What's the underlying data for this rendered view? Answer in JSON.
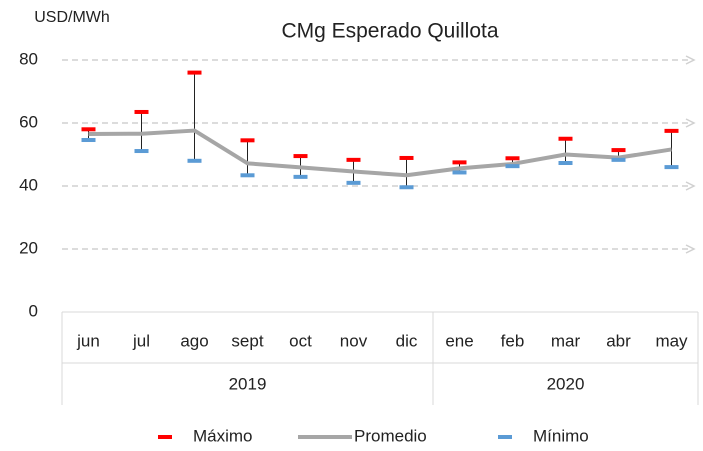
{
  "chart_data": {
    "type": "line",
    "title": "CMg Esperado Quillota",
    "y_label": "USD/MWh",
    "category_groups": [
      {
        "label": "2019",
        "categories": [
          "jun",
          "jul",
          "ago",
          "sept",
          "oct",
          "nov",
          "dic"
        ]
      },
      {
        "label": "2020",
        "categories": [
          "ene",
          "feb",
          "mar",
          "abr",
          "may"
        ]
      }
    ],
    "series": [
      {
        "name": "Máximo",
        "color": "#ff0000",
        "values": [
          58,
          63.5,
          76,
          54.5,
          49.5,
          48.3,
          48.9,
          47.5,
          48.8,
          55,
          51.4,
          57.5
        ]
      },
      {
        "name": "Promedio",
        "color": "#a6a6a6",
        "values": [
          56.5,
          56.6,
          57.6,
          47.2,
          45.9,
          44.6,
          43.4,
          45.6,
          47,
          50,
          49,
          51.6
        ]
      },
      {
        "name": "Mínimo",
        "color": "#5b9bd5",
        "values": [
          54.6,
          51.1,
          48,
          43.4,
          42.9,
          41,
          39.6,
          44.3,
          46.3,
          47.3,
          48.3,
          46
        ]
      }
    ],
    "ylim": [
      0,
      80
    ],
    "yticks": [
      0,
      20,
      40,
      60,
      80
    ],
    "grid": true,
    "legend": "bottom"
  }
}
